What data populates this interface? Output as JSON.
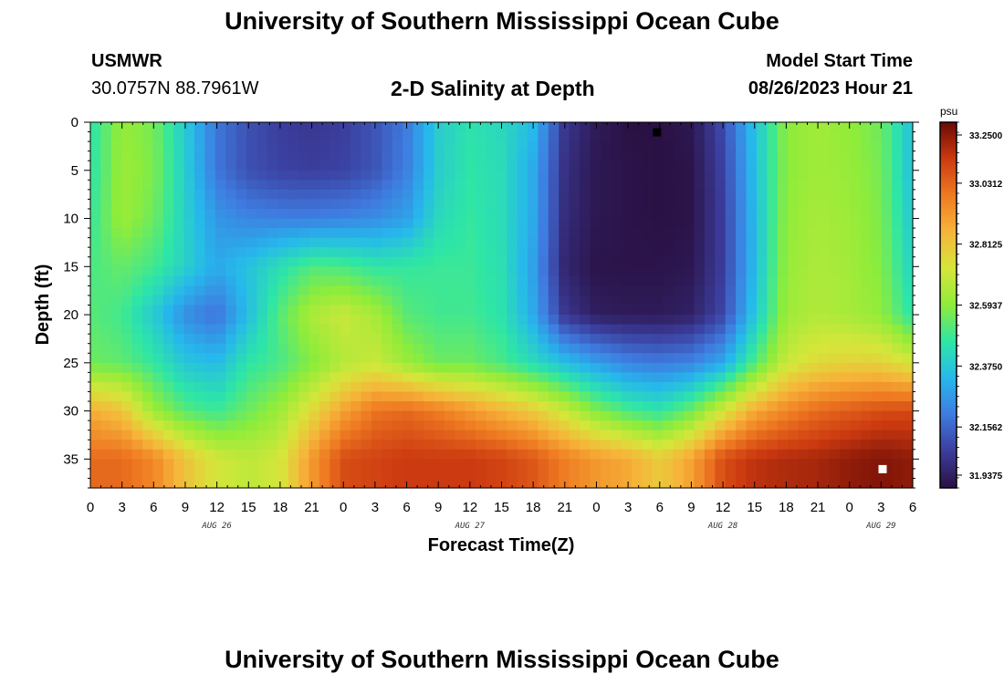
{
  "header": {
    "title": "University of Southern Mississippi Ocean Cube",
    "station": "USMWR",
    "coords": "30.0757N  88.7961W",
    "subtitle": "2-D Salinity at Depth",
    "model_label": "Model Start Time",
    "model_time": "08/26/2023 Hour 21"
  },
  "footer": {
    "title": "University of Southern Mississippi Ocean Cube"
  },
  "chart_data": {
    "type": "heatmap",
    "title": "2-D Salinity at Depth",
    "xlabel": "Forecast Time(Z)",
    "ylabel": "Depth (ft)",
    "x_unit": "hours from AUG 26 00Z",
    "xlim": [
      0,
      78
    ],
    "ylim": [
      0,
      38
    ],
    "y_inverted": true,
    "x_tick_labels": [
      "0",
      "3",
      "6",
      "9",
      "12",
      "15",
      "18",
      "21",
      "0",
      "3",
      "6",
      "9",
      "12",
      "15",
      "18",
      "21",
      "0",
      "3",
      "6",
      "9",
      "12",
      "15",
      "18",
      "21",
      "0",
      "3",
      "6"
    ],
    "day_labels": [
      {
        "text": "AUG 26",
        "x": 12
      },
      {
        "text": "AUG 27",
        "x": 36
      },
      {
        "text": "AUG 28",
        "x": 60
      },
      {
        "text": "AUG 29",
        "x": 75
      }
    ],
    "y_tick_labels": [
      "0",
      "5",
      "10",
      "15",
      "20",
      "25",
      "30",
      "35"
    ],
    "y_ticks": [
      0,
      5,
      10,
      15,
      20,
      25,
      30,
      35
    ],
    "colorbar": {
      "unit": "psu",
      "min": 31.9375,
      "max": 33.25,
      "labels": [
        "33.2500",
        "33.0312",
        "32.8125",
        "32.5937",
        "32.3750",
        "32.1562",
        "31.9375"
      ],
      "colormap": [
        "#2a1042",
        "#3b3d9c",
        "#3f7be0",
        "#26b8ec",
        "#2ee6a6",
        "#8eec3a",
        "#d6e63a",
        "#f6b53a",
        "#ef7a22",
        "#cc3a10",
        "#6a0a06"
      ]
    },
    "markers": [
      {
        "name": "min-salinity-marker",
        "x": 53.7,
        "y": 1,
        "color": "#000000"
      },
      {
        "name": "max-salinity-marker",
        "x": 75.1,
        "y": 36,
        "color": "#ffffff"
      }
    ],
    "grid_x_hours": [
      0,
      3,
      6,
      9,
      12,
      15,
      18,
      21,
      24,
      27,
      30,
      33,
      36,
      39,
      42,
      45,
      48,
      51,
      54,
      57,
      60,
      63,
      66,
      69,
      72,
      75,
      78
    ],
    "grid_y_ft": [
      0,
      5,
      10,
      15,
      20,
      25,
      30,
      35
    ],
    "grid_values_psu": [
      [
        32.45,
        32.61,
        32.56,
        32.38,
        32.19,
        32.11,
        32.07,
        32.05,
        32.07,
        32.12,
        32.2,
        32.39,
        32.45,
        32.42,
        32.34,
        32.05,
        31.97,
        31.94,
        31.94,
        31.96,
        32.1,
        32.36,
        32.59,
        32.63,
        32.6,
        32.55,
        32.35
      ],
      [
        32.45,
        32.62,
        32.57,
        32.39,
        32.19,
        32.11,
        32.08,
        32.07,
        32.08,
        32.12,
        32.21,
        32.39,
        32.46,
        32.43,
        32.3,
        32.03,
        31.96,
        31.95,
        31.94,
        31.95,
        32.08,
        32.35,
        32.59,
        32.63,
        32.61,
        32.56,
        32.35
      ],
      [
        32.47,
        32.62,
        32.55,
        32.4,
        32.26,
        32.22,
        32.21,
        32.21,
        32.22,
        32.24,
        32.28,
        32.42,
        32.47,
        32.43,
        32.3,
        32.02,
        31.96,
        31.95,
        31.94,
        31.95,
        32.07,
        32.34,
        32.6,
        32.64,
        32.62,
        32.57,
        32.37
      ],
      [
        32.5,
        32.54,
        32.49,
        32.4,
        32.3,
        32.36,
        32.44,
        32.51,
        32.5,
        32.46,
        32.47,
        32.48,
        32.48,
        32.44,
        32.28,
        32.0,
        31.95,
        31.95,
        31.95,
        31.96,
        32.07,
        32.34,
        32.61,
        32.65,
        32.63,
        32.58,
        32.4
      ],
      [
        32.52,
        32.49,
        32.38,
        32.24,
        32.18,
        32.35,
        32.52,
        32.65,
        32.7,
        32.64,
        32.52,
        32.49,
        32.49,
        32.45,
        32.3,
        32.05,
        31.98,
        31.97,
        31.97,
        31.99,
        32.09,
        32.37,
        32.62,
        32.66,
        32.64,
        32.6,
        32.45
      ],
      [
        32.55,
        32.53,
        32.47,
        32.37,
        32.34,
        32.46,
        32.5,
        32.58,
        32.66,
        32.7,
        32.62,
        32.55,
        32.55,
        32.5,
        32.43,
        32.35,
        32.28,
        32.22,
        32.2,
        32.22,
        32.3,
        32.51,
        32.7,
        32.76,
        32.78,
        32.78,
        32.72
      ],
      [
        32.87,
        32.82,
        32.62,
        32.52,
        32.48,
        32.55,
        32.62,
        32.76,
        32.9,
        33.0,
        33.02,
        32.98,
        32.92,
        32.86,
        32.8,
        32.7,
        32.58,
        32.5,
        32.46,
        32.55,
        32.72,
        32.88,
        32.96,
        33.02,
        33.05,
        33.08,
        33.09
      ],
      [
        33.02,
        33.02,
        32.96,
        32.82,
        32.72,
        32.68,
        32.72,
        32.92,
        33.08,
        33.1,
        33.12,
        33.12,
        33.12,
        33.1,
        33.06,
        32.98,
        32.92,
        32.88,
        32.8,
        32.9,
        33.08,
        33.14,
        33.16,
        33.17,
        33.2,
        33.22,
        33.2
      ]
    ]
  }
}
